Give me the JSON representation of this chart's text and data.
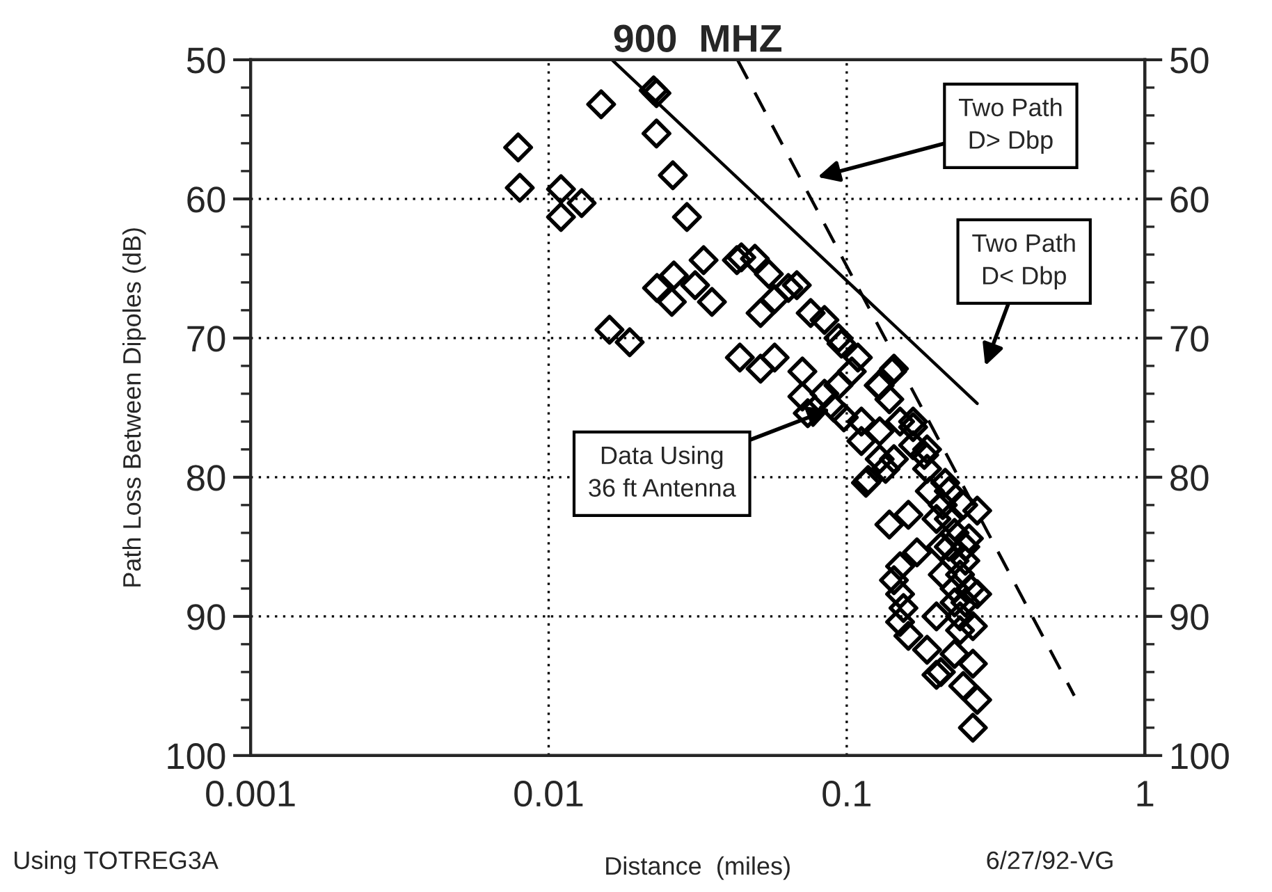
{
  "chart_data": {
    "type": "scatter",
    "title": "900  MHZ",
    "xlabel": "Distance  (miles)",
    "ylabel": "Path Loss Between Dipoles (dB)",
    "log": "x",
    "xlim": [
      0.001,
      1
    ],
    "xticks": [
      {
        "value": 0.001,
        "label": "0.001"
      },
      {
        "value": 0.01,
        "label": "0.01"
      },
      {
        "value": 0.1,
        "label": "0.1"
      },
      1
    ],
    "ylim": [
      100,
      50
    ],
    "yticks": [
      50,
      60,
      70,
      80,
      90,
      100
    ],
    "y2lim": [
      100,
      50
    ],
    "y2ticks": [
      50,
      60,
      70,
      80,
      90,
      100
    ],
    "grid": true,
    "legend": false,
    "series": [
      {
        "marker": "diamond",
        "color": "#000000",
        "x": [
          0.0079,
          0.008,
          0.011,
          0.0129,
          0.011,
          0.015,
          0.016,
          0.0187,
          0.0225,
          0.023,
          0.023,
          0.0261,
          0.0291,
          0.0331,
          0.0263,
          0.0231,
          0.031,
          0.0259,
          0.0353,
          0.0428,
          0.0492,
          0.0548,
          0.0637,
          0.068,
          0.0514,
          0.0573,
          0.0757,
          0.0443,
          0.0438,
          0.0514,
          0.0573,
          0.071,
          0.0842,
          0.0938,
          0.109,
          0.104,
          0.144,
          0.129,
          0.0938,
          0.0842,
          0.071,
          0.074,
          0.0905,
          0.0978,
          0.112,
          0.112,
          0.129,
          0.151,
          0.167,
          0.144,
          0.167,
          0.186,
          0.116,
          0.135,
          0.129,
          0.186,
          0.139,
          0.161,
          0.274,
          0.246,
          0.151,
          0.144,
          0.151,
          0.155,
          0.151,
          0.161,
          0.186,
          0.207,
          0.23,
          0.265,
          0.246,
          0.274,
          0.265,
          0.265,
          0.274,
          0.2,
          0.172,
          0.096,
          0.142,
          0.128,
          0.139,
          0.167,
          0.182,
          0.118,
          0.214,
          0.257,
          0.207,
          0.2,
          0.21,
          0.22,
          0.23,
          0.22,
          0.23,
          0.24,
          0.23,
          0.25,
          0.24,
          0.22,
          0.25,
          0.2,
          0.19,
          0.21,
          0.26,
          0.24,
          0.25,
          0.23
        ],
        "values": [
          56.3,
          59.2,
          59.3,
          60.3,
          61.3,
          53.2,
          69.4,
          70.3,
          52.2,
          52.4,
          55.3,
          58.3,
          61.3,
          64.4,
          65.5,
          66.4,
          66.2,
          67.4,
          67.4,
          64.4,
          64.3,
          65.4,
          66.4,
          66.2,
          68.2,
          67.2,
          68.2,
          64.2,
          71.4,
          72.2,
          71.4,
          72.4,
          68.7,
          70,
          71.4,
          72.4,
          72.2,
          73.4,
          73.4,
          74,
          74.2,
          75.4,
          75,
          75.7,
          76,
          77.4,
          76.7,
          76,
          76,
          78.7,
          77.7,
          78,
          80.4,
          79.4,
          78.7,
          79.4,
          83.4,
          82.7,
          82.4,
          82,
          86.4,
          87.4,
          88.4,
          89.4,
          90.4,
          91.4,
          92.4,
          94,
          92.7,
          93.4,
          95,
          96,
          98,
          90.7,
          88.4,
          90,
          85.4,
          70.4,
          72.4,
          73.4,
          74.4,
          76.4,
          78.4,
          80.2,
          80.4,
          84.4,
          85,
          94.2,
          82,
          83,
          84,
          85,
          86,
          87,
          88,
          89,
          90,
          81,
          86,
          83,
          81,
          87,
          88,
          91,
          85,
          89
        ]
      },
      {
        "type": "line",
        "color": "#000000",
        "line_style": "solid",
        "x": [
          0.0163,
          0.274
        ],
        "values": [
          50,
          74.7
        ]
      },
      {
        "type": "line",
        "color": "#000000",
        "line_style": "dashed",
        "x": [
          0.043,
          0.58
        ],
        "values": [
          50,
          95.7
        ]
      }
    ],
    "annotations": [
      "Two Path\nD> Dbp",
      "Two Path\nD< Dbp",
      {
        "text": "Data Using\n36 ft Antenna",
        "x": 0.0905,
        "y": 75
      },
      "Using TOTREG3A",
      "6/27/92-VG"
    ]
  }
}
